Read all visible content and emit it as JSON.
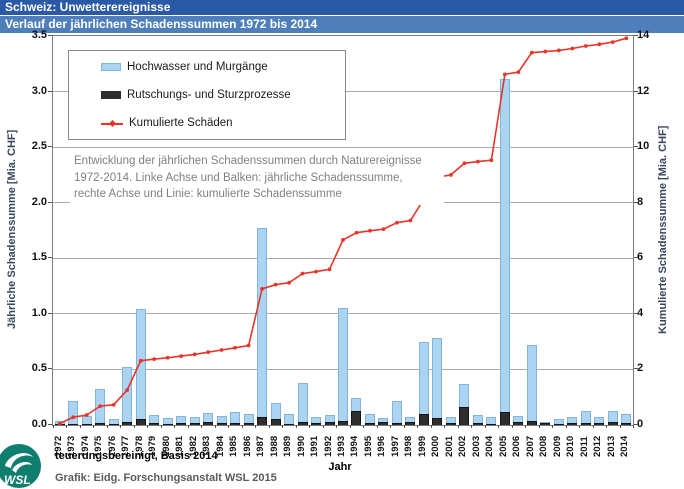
{
  "header": {
    "line1": "Schweiz: Unwetterereignisse",
    "line2": "Verlauf der jährlichen Schadenssummen 1972 bis 2014"
  },
  "legend": {
    "items": [
      {
        "label": "Hochwasser und Murgänge",
        "swatch": "blue-bar",
        "color": "#abd4f2"
      },
      {
        "label": "Rutschungs- und Sturzprozesse",
        "swatch": "black-bar",
        "color": "#2e2e2e"
      },
      {
        "label": "Kumulierte Schäden",
        "swatch": "red-line",
        "color": "#e8352a"
      }
    ]
  },
  "annotation": {
    "lines": [
      "Entwicklung der jährlichen Schadenssummen durch Naturereignisse",
      "1972-2014. Linke Achse und Balken: jährliche Schadenssumme,",
      "rechte Achse und Linie: kumulierte Schadenssumme"
    ]
  },
  "footer": {
    "note": "teuerungsbereinigt, Basis 2014",
    "xlabel": "Jahr",
    "credit": "Grafik: Eidg. Forschungsanstalt WSL 2015",
    "logo_text": "WSL"
  },
  "colors": {
    "header_dark_blue": "#2a5aa6",
    "header_light_blue": "#4e7fba",
    "bar_blue": "#abd4f2",
    "bar_blue_border": "#82b5dc",
    "bar_black": "#2e2e2e",
    "line_red": "#e8352a",
    "grid_gray": "#ababab",
    "logo_teal": "#0f7e6f"
  },
  "chart_data": {
    "type": "bar",
    "title": "Verlauf der jährlichen Schadenssummen 1972 bis 2014",
    "x": [
      "1972",
      "1973",
      "1974",
      "1975",
      "1976",
      "1977",
      "1978",
      "1979",
      "1980",
      "1981",
      "1982",
      "1983",
      "1984",
      "1985",
      "1986",
      "1987",
      "1988",
      "1989",
      "1990",
      "1991",
      "1992",
      "1993",
      "1994",
      "1995",
      "1996",
      "1997",
      "1998",
      "1999",
      "2000",
      "2001",
      "2002",
      "2003",
      "2004",
      "2005",
      "2006",
      "2007",
      "2008",
      "2009",
      "2010",
      "2011",
      "2012",
      "2013",
      "2014"
    ],
    "series": [
      {
        "name": "Hochwasser und Murgänge",
        "type": "bar",
        "axis": "left",
        "color": "#abd4f2",
        "values": [
          0.04,
          0.22,
          0.08,
          0.32,
          0.05,
          0.52,
          1.04,
          0.09,
          0.06,
          0.08,
          0.07,
          0.11,
          0.08,
          0.12,
          0.1,
          1.77,
          0.2,
          0.1,
          0.38,
          0.07,
          0.09,
          1.05,
          0.24,
          0.1,
          0.06,
          0.22,
          0.07,
          0.75,
          0.78,
          0.07,
          0.37,
          0.09,
          0.07,
          3.11,
          0.08,
          0.72,
          0.03,
          0.05,
          0.07,
          0.13,
          0.07,
          0.13,
          0.1
        ]
      },
      {
        "name": "Rutschungs- und Sturzprozesse",
        "type": "bar",
        "axis": "left",
        "color": "#2e2e2e",
        "values": [
          0.01,
          0.01,
          0.01,
          0.02,
          0.01,
          0.03,
          0.05,
          0.02,
          0.01,
          0.02,
          0.02,
          0.03,
          0.02,
          0.02,
          0.02,
          0.07,
          0.05,
          0.01,
          0.03,
          0.02,
          0.03,
          0.04,
          0.13,
          0.02,
          0.03,
          0.02,
          0.03,
          0.1,
          0.06,
          0.02,
          0.16,
          0.02,
          0.01,
          0.12,
          0.03,
          0.04,
          0.02,
          0.01,
          0.02,
          0.02,
          0.02,
          0.03,
          0.02
        ]
      },
      {
        "name": "Kumulierte Schäden",
        "type": "line",
        "axis": "right",
        "color": "#e8352a",
        "values": [
          0.05,
          0.28,
          0.36,
          0.68,
          0.73,
          1.26,
          2.31,
          2.37,
          2.42,
          2.48,
          2.54,
          2.62,
          2.7,
          2.78,
          2.86,
          4.9,
          5.05,
          5.12,
          5.45,
          5.52,
          5.6,
          6.66,
          6.92,
          6.99,
          7.05,
          7.28,
          7.36,
          8.13,
          8.92,
          9.0,
          9.42,
          9.48,
          9.53,
          12.62,
          12.7,
          13.4,
          13.44,
          13.48,
          13.55,
          13.64,
          13.7,
          13.78,
          13.92
        ]
      }
    ],
    "left_axis": {
      "label": "Jährliche Schadenssumme [Mia. CHF]",
      "range": [
        0,
        3.5
      ],
      "ticks": [
        "0.0",
        "0.5",
        "1.0",
        "1.5",
        "2.0",
        "2.5",
        "3.0",
        "3.5"
      ]
    },
    "right_axis": {
      "label": "Kumulierte Schadenssumme [Mia. CHF]",
      "range": [
        0,
        14
      ],
      "ticks": [
        "0",
        "2",
        "4",
        "6",
        "8",
        "10",
        "12",
        "14"
      ]
    },
    "x_axis": {
      "label": "Jahr"
    },
    "grid": true,
    "legend_position": "top-left"
  }
}
